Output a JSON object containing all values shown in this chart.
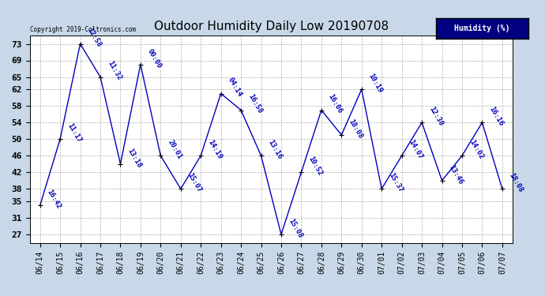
{
  "title": "Outdoor Humidity Daily Low 20190708",
  "legend_label": "Humidity (%)",
  "copyright": "Copyright 2019-Coltronics.com",
  "line_color": "#0000BB",
  "bg_color": "#C8D8E8",
  "plot_bg_color": "#FFFFFF",
  "grid_color": "#999999",
  "dates": [
    "06/14",
    "06/15",
    "06/16",
    "06/17",
    "06/18",
    "06/19",
    "06/20",
    "06/21",
    "06/22",
    "06/23",
    "06/24",
    "06/25",
    "06/26",
    "06/27",
    "06/28",
    "06/29",
    "06/30",
    "07/01",
    "07/02",
    "07/03",
    "07/04",
    "07/05",
    "07/06",
    "07/07"
  ],
  "values": [
    34,
    50,
    73,
    65,
    44,
    68,
    46,
    38,
    46,
    61,
    57,
    46,
    27,
    42,
    57,
    51,
    62,
    38,
    46,
    54,
    40,
    46,
    54,
    38
  ],
  "annotations": [
    "16:42",
    "11:17",
    "12:58",
    "11:32",
    "13:18",
    "00:00",
    "20:01",
    "15:07",
    "14:19",
    "04:14",
    "16:58",
    "13:16",
    "15:08",
    "10:52",
    "16:06",
    "18:08",
    "10:19",
    "15:37",
    "14:07",
    "12:30",
    "13:46",
    "14:02",
    "16:16",
    "18:08"
  ],
  "yticks": [
    27,
    31,
    35,
    38,
    42,
    46,
    50,
    54,
    58,
    62,
    65,
    69,
    73
  ],
  "ylim": [
    25,
    75
  ],
  "title_fontsize": 11,
  "axis_fontsize": 7,
  "annotation_fontsize": 6.5
}
